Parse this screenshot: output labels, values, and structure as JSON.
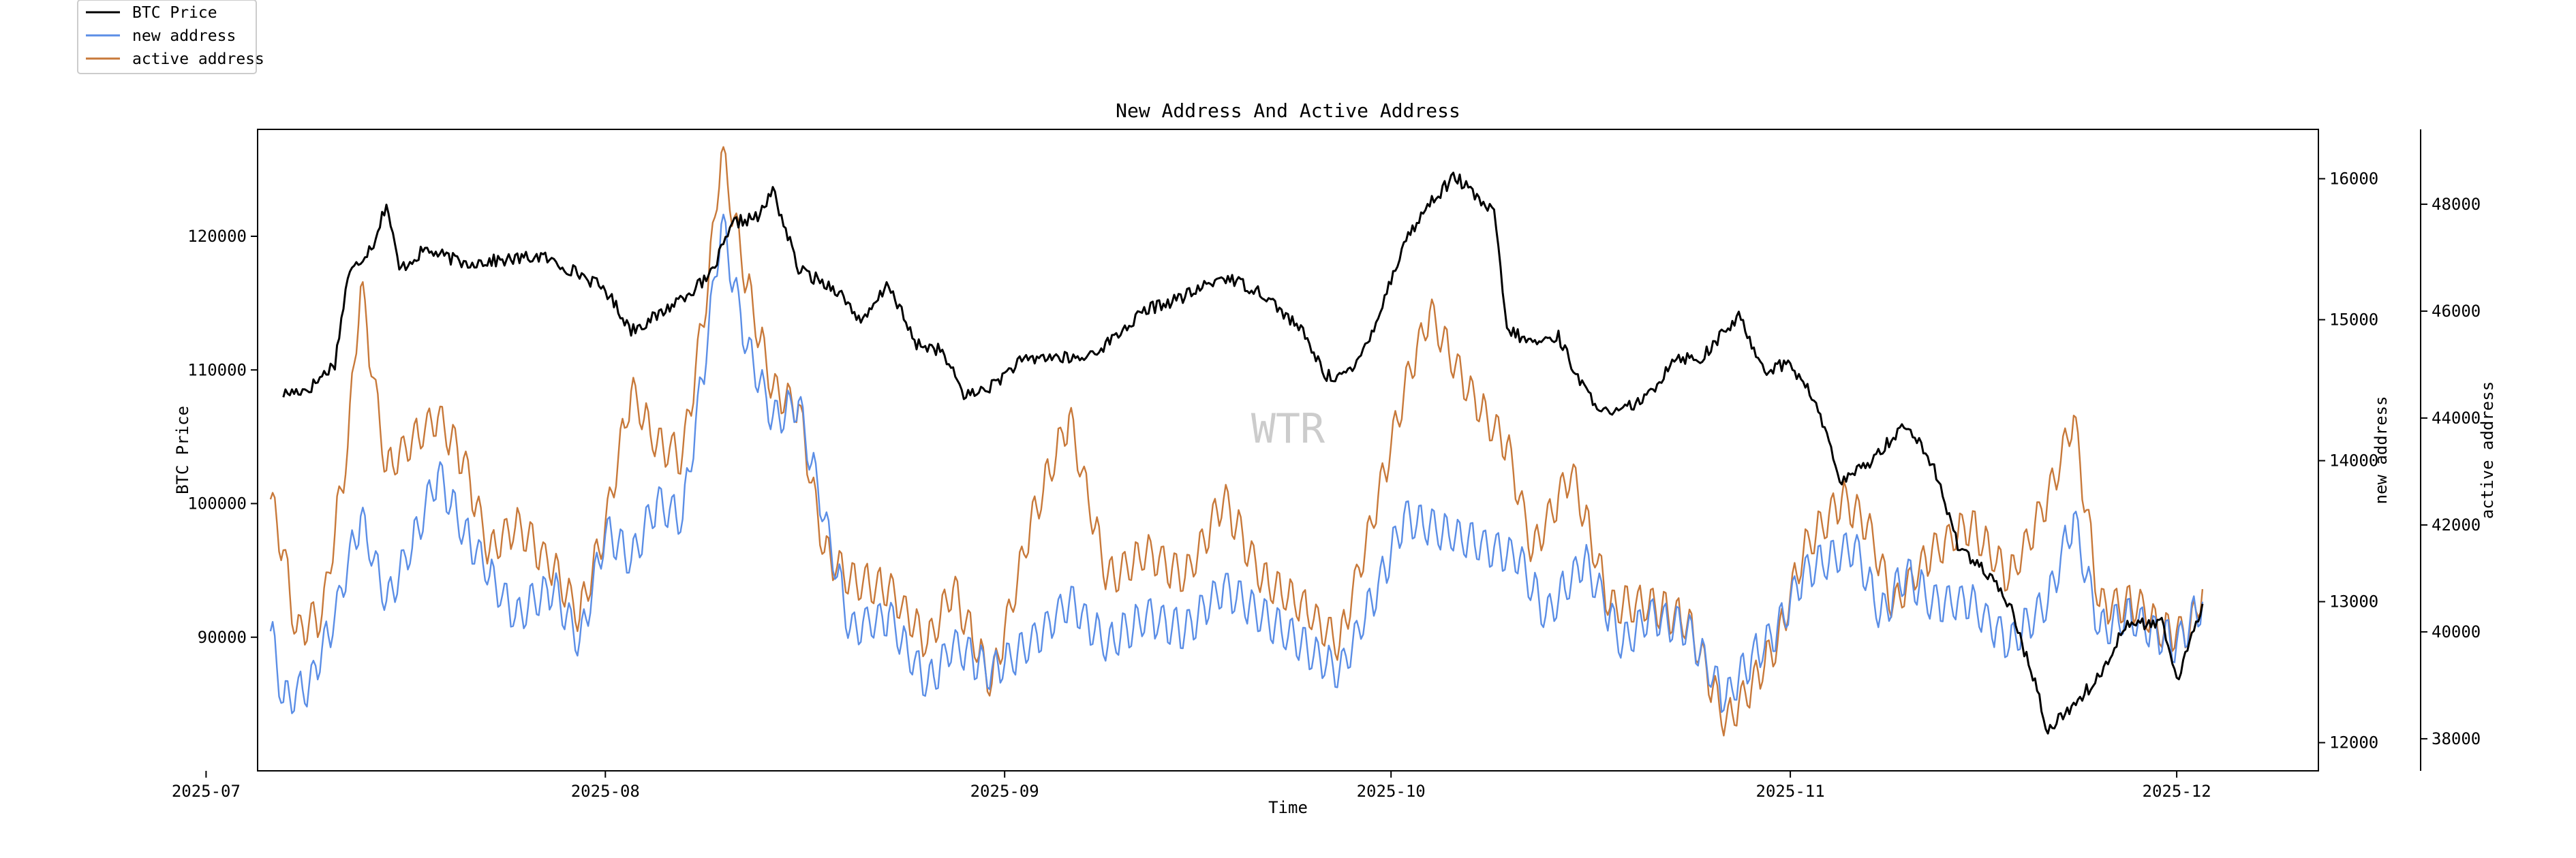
{
  "chart_data": {
    "type": "line",
    "title": "New Address And Active Address",
    "xlabel": "Time",
    "watermark": "WTR",
    "x_range": [
      "2025-07-05",
      "2025-12-12"
    ],
    "x_ticks": [
      "2025-07",
      "2025-08",
      "2025-09",
      "2025-10",
      "2025-11",
      "2025-12"
    ],
    "axes": [
      {
        "id": "price",
        "label": "BTC Price",
        "side": "left",
        "ylim": [
          80000,
          128000
        ],
        "ticks": [
          90000,
          100000,
          110000,
          120000
        ]
      },
      {
        "id": "new",
        "label": "new address",
        "side": "right",
        "ylim": [
          11800,
          16350
        ],
        "ticks": [
          12000,
          13000,
          14000,
          15000,
          16000
        ]
      },
      {
        "id": "active",
        "label": "active address",
        "side": "right-outer",
        "ylim": [
          37400,
          49400
        ],
        "ticks": [
          38000,
          40000,
          42000,
          44000,
          46000,
          48000
        ]
      }
    ],
    "legend": {
      "position": "top-left"
    },
    "series": [
      {
        "name": "BTC Price",
        "axis": "price",
        "color": "#000000",
        "points": [
          [
            "2025-07-07",
            108200
          ],
          [
            "2025-07-09",
            108600
          ],
          [
            "2025-07-11",
            110500
          ],
          [
            "2025-07-12",
            117000
          ],
          [
            "2025-07-14",
            119500
          ],
          [
            "2025-07-15",
            122500
          ],
          [
            "2025-07-16",
            117500
          ],
          [
            "2025-07-18",
            119000
          ],
          [
            "2025-07-21",
            118000
          ],
          [
            "2025-07-24",
            118200
          ],
          [
            "2025-07-27",
            118500
          ],
          [
            "2025-07-30",
            117200
          ],
          [
            "2025-08-01",
            116000
          ],
          [
            "2025-08-03",
            113000
          ],
          [
            "2025-08-05",
            114000
          ],
          [
            "2025-08-07",
            115500
          ],
          [
            "2025-08-09",
            116800
          ],
          [
            "2025-08-11",
            121000
          ],
          [
            "2025-08-13",
            121500
          ],
          [
            "2025-08-14",
            123500
          ],
          [
            "2025-08-16",
            117500
          ],
          [
            "2025-08-19",
            116000
          ],
          [
            "2025-08-21",
            113500
          ],
          [
            "2025-08-23",
            116500
          ],
          [
            "2025-08-25",
            112000
          ],
          [
            "2025-08-27",
            111500
          ],
          [
            "2025-08-29",
            108000
          ],
          [
            "2025-08-31",
            108800
          ],
          [
            "2025-09-02",
            110500
          ],
          [
            "2025-09-04",
            111000
          ],
          [
            "2025-09-07",
            110800
          ],
          [
            "2025-09-09",
            112000
          ],
          [
            "2025-09-12",
            114500
          ],
          [
            "2025-09-15",
            115500
          ],
          [
            "2025-09-18",
            117000
          ],
          [
            "2025-09-21",
            115800
          ],
          [
            "2025-09-24",
            113000
          ],
          [
            "2025-09-26",
            109500
          ],
          [
            "2025-09-28",
            109800
          ],
          [
            "2025-09-30",
            114000
          ],
          [
            "2025-10-02",
            119500
          ],
          [
            "2025-10-04",
            122500
          ],
          [
            "2025-10-06",
            124500
          ],
          [
            "2025-10-08",
            122500
          ],
          [
            "2025-10-09",
            121800
          ],
          [
            "2025-10-10",
            113000
          ],
          [
            "2025-10-12",
            112000
          ],
          [
            "2025-10-14",
            112500
          ],
          [
            "2025-10-16",
            108500
          ],
          [
            "2025-10-18",
            106500
          ],
          [
            "2025-10-21",
            108000
          ],
          [
            "2025-10-23",
            111000
          ],
          [
            "2025-10-25",
            110800
          ],
          [
            "2025-10-28",
            114000
          ],
          [
            "2025-10-30",
            110000
          ],
          [
            "2025-11-01",
            110500
          ],
          [
            "2025-11-03",
            107500
          ],
          [
            "2025-11-05",
            101500
          ],
          [
            "2025-11-07",
            103000
          ],
          [
            "2025-11-10",
            106000
          ],
          [
            "2025-11-12",
            103000
          ],
          [
            "2025-11-14",
            97000
          ],
          [
            "2025-11-16",
            95000
          ],
          [
            "2025-11-18",
            92500
          ],
          [
            "2025-11-20",
            86500
          ],
          [
            "2025-11-21",
            83000
          ],
          [
            "2025-11-23",
            85000
          ],
          [
            "2025-11-25",
            87000
          ],
          [
            "2025-11-27",
            91000
          ],
          [
            "2025-11-30",
            91000
          ],
          [
            "2025-12-01",
            86500
          ],
          [
            "2025-12-03",
            92500
          ]
        ]
      },
      {
        "name": "new address",
        "axis": "new",
        "color": "#5b8ee6",
        "points": [
          [
            "2025-07-06",
            12800
          ],
          [
            "2025-07-07",
            12300
          ],
          [
            "2025-07-09",
            12400
          ],
          [
            "2025-07-11",
            12900
          ],
          [
            "2025-07-13",
            13600
          ],
          [
            "2025-07-15",
            13000
          ],
          [
            "2025-07-17",
            13400
          ],
          [
            "2025-07-19",
            13900
          ],
          [
            "2025-07-21",
            13500
          ],
          [
            "2025-07-23",
            13200
          ],
          [
            "2025-07-25",
            12900
          ],
          [
            "2025-07-28",
            13100
          ],
          [
            "2025-07-30",
            12700
          ],
          [
            "2025-08-01",
            13500
          ],
          [
            "2025-08-03",
            13300
          ],
          [
            "2025-08-05",
            13700
          ],
          [
            "2025-08-07",
            13600
          ],
          [
            "2025-08-09",
            14900
          ],
          [
            "2025-08-10",
            15700
          ],
          [
            "2025-08-12",
            14800
          ],
          [
            "2025-08-14",
            14300
          ],
          [
            "2025-08-16",
            14400
          ],
          [
            "2025-08-18",
            13600
          ],
          [
            "2025-08-20",
            12800
          ],
          [
            "2025-08-23",
            12900
          ],
          [
            "2025-08-26",
            12400
          ],
          [
            "2025-08-28",
            12700
          ],
          [
            "2025-08-31",
            12500
          ],
          [
            "2025-09-03",
            12700
          ],
          [
            "2025-09-06",
            13000
          ],
          [
            "2025-09-09",
            12700
          ],
          [
            "2025-09-12",
            12900
          ],
          [
            "2025-09-15",
            12800
          ],
          [
            "2025-09-18",
            13100
          ],
          [
            "2025-09-21",
            12900
          ],
          [
            "2025-09-24",
            12700
          ],
          [
            "2025-09-27",
            12500
          ],
          [
            "2025-09-30",
            13100
          ],
          [
            "2025-10-02",
            13600
          ],
          [
            "2025-10-05",
            13500
          ],
          [
            "2025-10-08",
            13400
          ],
          [
            "2025-10-11",
            13300
          ],
          [
            "2025-10-13",
            12900
          ],
          [
            "2025-10-16",
            13300
          ],
          [
            "2025-10-19",
            12700
          ],
          [
            "2025-10-21",
            12900
          ],
          [
            "2025-10-24",
            12800
          ],
          [
            "2025-10-27",
            12300
          ],
          [
            "2025-10-29",
            12600
          ],
          [
            "2025-10-31",
            12800
          ],
          [
            "2025-11-02",
            13200
          ],
          [
            "2025-11-04",
            13300
          ],
          [
            "2025-11-06",
            13400
          ],
          [
            "2025-11-08",
            12900
          ],
          [
            "2025-11-10",
            13200
          ],
          [
            "2025-11-12",
            13000
          ],
          [
            "2025-11-15",
            13000
          ],
          [
            "2025-11-18",
            12700
          ],
          [
            "2025-11-21",
            13000
          ],
          [
            "2025-11-23",
            13600
          ],
          [
            "2025-11-25",
            12800
          ],
          [
            "2025-11-27",
            12900
          ],
          [
            "2025-11-29",
            12800
          ],
          [
            "2025-12-01",
            12700
          ],
          [
            "2025-12-03",
            13000
          ]
        ]
      },
      {
        "name": "active address",
        "axis": "active",
        "color": "#c8793a",
        "points": [
          [
            "2025-07-06",
            42500
          ],
          [
            "2025-07-07",
            41500
          ],
          [
            "2025-07-08",
            40000
          ],
          [
            "2025-07-10",
            40300
          ],
          [
            "2025-07-12",
            43500
          ],
          [
            "2025-07-13",
            46500
          ],
          [
            "2025-07-15",
            43000
          ],
          [
            "2025-07-17",
            43600
          ],
          [
            "2025-07-19",
            44000
          ],
          [
            "2025-07-21",
            43200
          ],
          [
            "2025-07-23",
            41500
          ],
          [
            "2025-07-25",
            42000
          ],
          [
            "2025-07-28",
            41200
          ],
          [
            "2025-07-30",
            40300
          ],
          [
            "2025-08-01",
            42000
          ],
          [
            "2025-08-03",
            44500
          ],
          [
            "2025-08-05",
            43500
          ],
          [
            "2025-08-07",
            43300
          ],
          [
            "2025-08-09",
            46500
          ],
          [
            "2025-08-10",
            49000
          ],
          [
            "2025-08-12",
            46500
          ],
          [
            "2025-08-14",
            44500
          ],
          [
            "2025-08-16",
            44200
          ],
          [
            "2025-08-18",
            41500
          ],
          [
            "2025-08-20",
            41000
          ],
          [
            "2025-08-23",
            40800
          ],
          [
            "2025-08-26",
            39800
          ],
          [
            "2025-08-28",
            40800
          ],
          [
            "2025-08-31",
            39000
          ],
          [
            "2025-09-03",
            42000
          ],
          [
            "2025-09-06",
            44000
          ],
          [
            "2025-09-09",
            41000
          ],
          [
            "2025-09-12",
            41500
          ],
          [
            "2025-09-15",
            41000
          ],
          [
            "2025-09-18",
            42500
          ],
          [
            "2025-09-21",
            41000
          ],
          [
            "2025-09-24",
            40500
          ],
          [
            "2025-09-27",
            39800
          ],
          [
            "2025-09-30",
            42500
          ],
          [
            "2025-10-02",
            44500
          ],
          [
            "2025-10-04",
            46000
          ],
          [
            "2025-10-07",
            44500
          ],
          [
            "2025-10-10",
            43500
          ],
          [
            "2025-10-12",
            41500
          ],
          [
            "2025-10-15",
            43000
          ],
          [
            "2025-10-18",
            40500
          ],
          [
            "2025-10-21",
            40500
          ],
          [
            "2025-10-24",
            40200
          ],
          [
            "2025-10-27",
            38300
          ],
          [
            "2025-10-29",
            39000
          ],
          [
            "2025-10-31",
            39800
          ],
          [
            "2025-11-02",
            41500
          ],
          [
            "2025-11-05",
            42500
          ],
          [
            "2025-11-07",
            42000
          ],
          [
            "2025-11-09",
            40500
          ],
          [
            "2025-11-12",
            41500
          ],
          [
            "2025-11-15",
            42000
          ],
          [
            "2025-11-18",
            41000
          ],
          [
            "2025-11-21",
            42500
          ],
          [
            "2025-11-23",
            44000
          ],
          [
            "2025-11-25",
            40500
          ],
          [
            "2025-11-28",
            40500
          ],
          [
            "2025-11-30",
            40000
          ],
          [
            "2025-12-02",
            40000
          ],
          [
            "2025-12-03",
            40800
          ]
        ]
      }
    ]
  }
}
